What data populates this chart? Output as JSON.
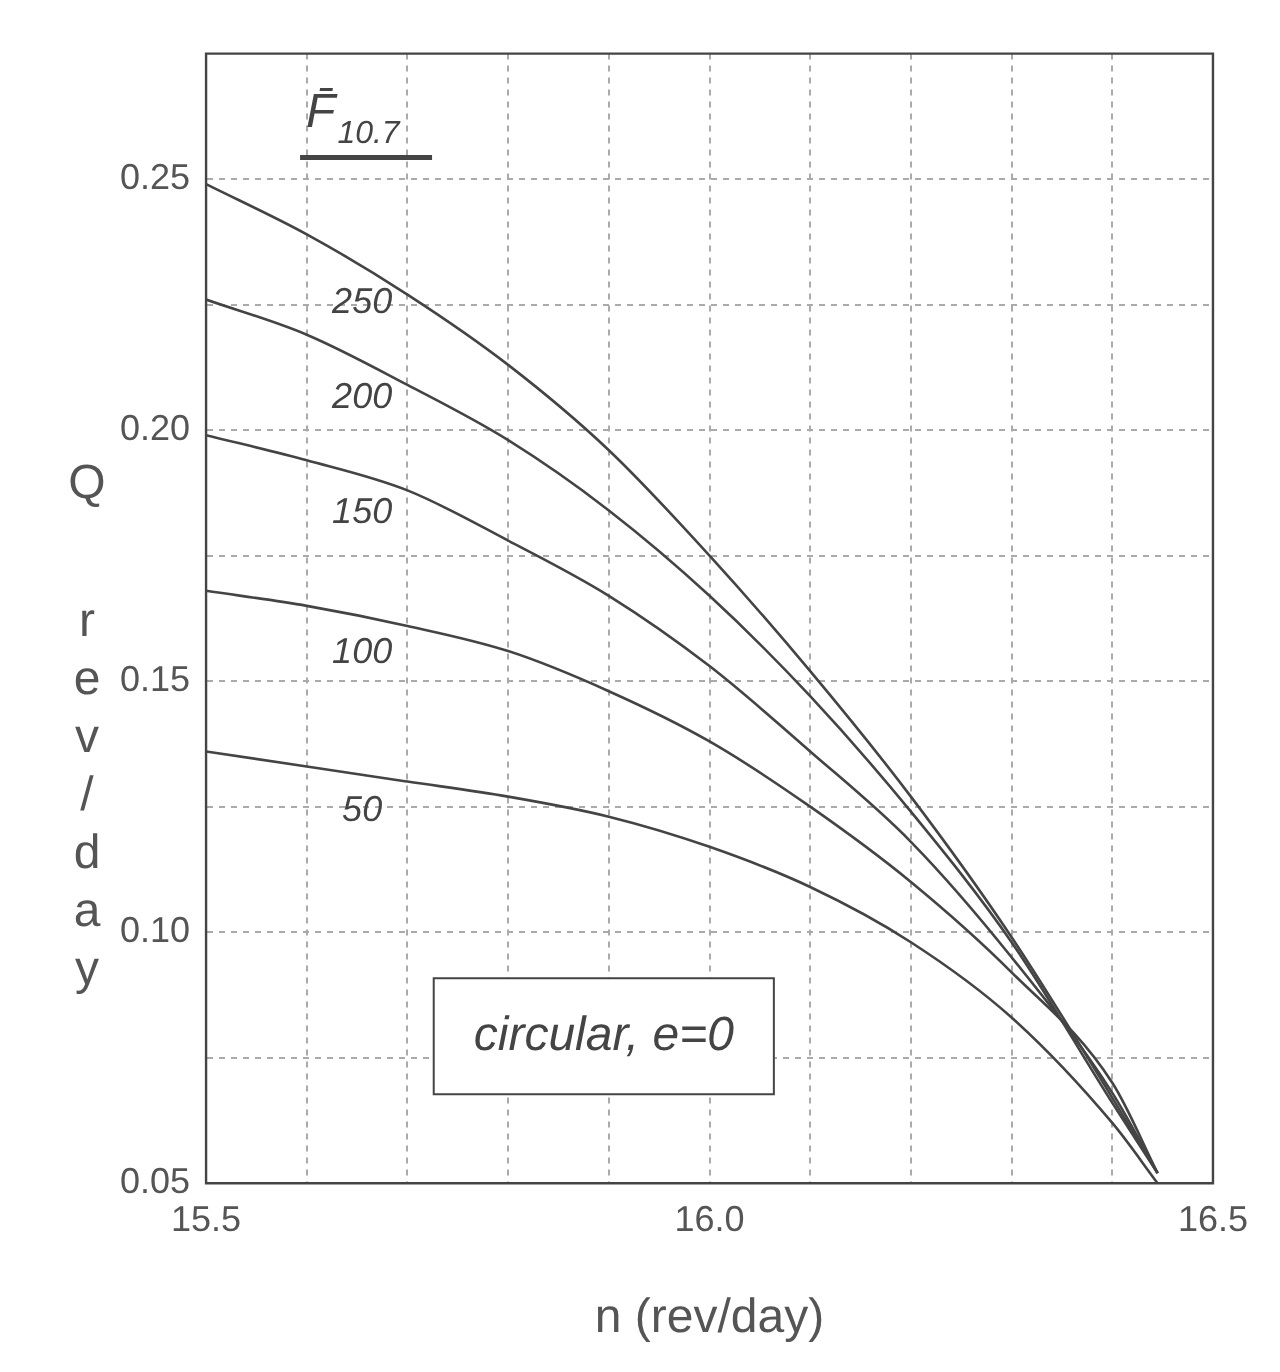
{
  "chart_data": {
    "type": "line",
    "xlabel": "n (rev/day)",
    "ylabel": "Q rev/day",
    "legend_title": "F̄$_{10.7}$",
    "annotations": [
      "circular, e=0"
    ],
    "x": [
      15.5,
      15.6,
      15.7,
      15.8,
      15.9,
      16.0,
      16.1,
      16.2,
      16.3,
      16.4,
      16.445
    ],
    "series": [
      {
        "name": "250",
        "color": "#444444",
        "values": [
          0.249,
          0.239,
          0.227,
          0.213,
          0.196,
          0.175,
          0.152,
          0.127,
          0.099,
          0.067,
          0.052
        ]
      },
      {
        "name": "200",
        "color": "#444444",
        "values": [
          0.226,
          0.219,
          0.209,
          0.198,
          0.184,
          0.167,
          0.147,
          0.124,
          0.098,
          0.066,
          0.052
        ]
      },
      {
        "name": "150",
        "color": "#444444",
        "values": [
          0.199,
          0.194,
          0.188,
          0.178,
          0.167,
          0.153,
          0.136,
          0.118,
          0.095,
          0.068,
          0.052
        ]
      },
      {
        "name": "100",
        "color": "#444444",
        "values": [
          0.168,
          0.165,
          0.161,
          0.156,
          0.148,
          0.138,
          0.125,
          0.11,
          0.092,
          0.07,
          0.052
        ]
      },
      {
        "name": "50",
        "color": "#444444",
        "values": [
          0.136,
          0.133,
          0.13,
          0.127,
          0.123,
          0.117,
          0.109,
          0.098,
          0.083,
          0.062,
          0.05
        ]
      }
    ],
    "xlim": [
      15.5,
      16.5
    ],
    "xticks": [
      15.5,
      {
        "value": 15.6,
        "label": null
      },
      {
        "value": 15.7,
        "label": null
      },
      {
        "value": 15.8,
        "label": null
      },
      {
        "value": 15.9,
        "label": null
      },
      {
        "value": 16.0,
        "label": "16.0"
      },
      {
        "value": 16.1,
        "label": null
      },
      {
        "value": 16.2,
        "label": null
      },
      {
        "value": 16.3,
        "label": null
      },
      {
        "value": 16.4,
        "label": null
      },
      16.5
    ],
    "ylim": [
      0.05,
      0.275
    ],
    "yticks": [
      0.05,
      {
        "value": 0.075,
        "label": null
      },
      {
        "value": 0.1,
        "label": "0.10"
      },
      {
        "value": 0.125,
        "label": null
      },
      0.15,
      {
        "value": 0.175,
        "label": null
      },
      {
        "value": 0.2,
        "label": "0.20"
      },
      {
        "value": 0.225,
        "label": null
      },
      0.25
    ],
    "grid": true,
    "line_style": "solid",
    "marker": "none"
  }
}
